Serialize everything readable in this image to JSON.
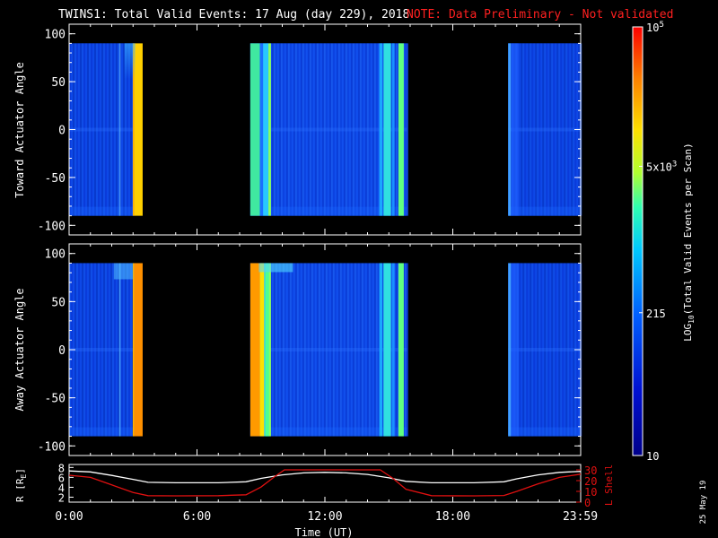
{
  "header": {
    "title": "TWINS1: Total Valid Events: 17 Aug (day 229), 2018",
    "note": "NOTE: Data Preliminary - Not validated",
    "date_stamp": "25 May 19"
  },
  "colors": {
    "background": "#000000",
    "note": "#ff2020",
    "axes": "#ffffff",
    "r_line": "#ffffff",
    "l_shell_line": "#e01010"
  },
  "chart_data": [
    {
      "type": "heatmap",
      "panel": "top",
      "ylabel": "Toward Actuator Angle",
      "ylim": [
        -110,
        110
      ],
      "yticks": [
        100,
        50,
        0,
        -50,
        -100
      ],
      "data_y_range": [
        -90,
        90
      ],
      "xlim_hours": [
        0,
        24
      ],
      "data_blocks_hours": [
        {
          "start": 0.0,
          "end": 3.05,
          "level": "low"
        },
        {
          "start": 3.05,
          "end": 3.45,
          "level": "high"
        },
        {
          "start": 8.5,
          "end": 15.85,
          "level": "low-mid"
        },
        {
          "start": 20.6,
          "end": 24.0,
          "level": "low"
        }
      ]
    },
    {
      "type": "heatmap",
      "panel": "middle",
      "ylabel": "Away Actuator Angle",
      "ylim": [
        -110,
        110
      ],
      "yticks": [
        100,
        50,
        0,
        -50,
        -100
      ],
      "data_y_range": [
        -90,
        90
      ],
      "xlim_hours": [
        0,
        24
      ],
      "data_blocks_hours": [
        {
          "start": 0.0,
          "end": 3.05,
          "level": "low"
        },
        {
          "start": 3.05,
          "end": 3.45,
          "level": "very-high"
        },
        {
          "start": 8.5,
          "end": 15.85,
          "level": "low-mid"
        },
        {
          "start": 20.6,
          "end": 24.0,
          "level": "low"
        }
      ]
    },
    {
      "type": "line",
      "panel": "bottom",
      "ylabel_left": "R [R",
      "ylabel_left_sub": "E",
      "ylabel_left_close": "]",
      "ylabel_right": "L Shell",
      "yticks_left": [
        2,
        4,
        6,
        8
      ],
      "yticks_right": [
        0,
        10,
        20,
        30
      ],
      "ylim_left": [
        2,
        8
      ],
      "ylim_right": [
        0,
        30
      ],
      "xlabel": "Time (UT)",
      "xtick_labels": [
        "0:00",
        "6:00",
        "12:00",
        "18:00",
        "23:59"
      ],
      "xtick_hours": [
        0,
        6,
        12,
        18,
        23.98
      ],
      "series": [
        {
          "axis": "left",
          "x": [
            0,
            1,
            2,
            3,
            3.7,
            5,
            7,
            8.3,
            9,
            10,
            11,
            12,
            13,
            14,
            15,
            15.8,
            17,
            19,
            20.4,
            21,
            22,
            23,
            24
          ],
          "values": [
            7.3,
            7.1,
            6.4,
            5.6,
            5.0,
            4.9,
            4.9,
            5.1,
            5.8,
            6.5,
            6.9,
            7.0,
            6.9,
            6.6,
            5.9,
            5.2,
            4.9,
            4.9,
            5.1,
            5.7,
            6.5,
            7.0,
            7.2
          ]
        },
        {
          "axis": "right",
          "x": [
            0,
            1,
            2,
            3,
            3.7,
            5,
            7,
            8.3,
            9,
            9.6,
            10.1,
            14.6,
            15.2,
            15.8,
            17,
            19,
            20.4,
            21,
            22,
            23,
            24
          ],
          "values": [
            25,
            23,
            16,
            9,
            6,
            5.8,
            6,
            6.8,
            14,
            23,
            30,
            30,
            22,
            12,
            6,
            5.8,
            6.2,
            10,
            17,
            23,
            26
          ]
        }
      ]
    },
    {
      "type": "colorbar",
      "label": "LOG",
      "label_sub": "10",
      "label_rest": "(Total Valid Events per Scan)",
      "tick_labels": [
        {
          "base": "10",
          "sup": "5",
          "value": 100000
        },
        {
          "base": "5x10",
          "sup": "3",
          "value": 5000
        },
        {
          "base": "215",
          "sup": "",
          "value": 215
        },
        {
          "base": "10",
          "sup": "",
          "value": 10
        }
      ],
      "scale": "log",
      "range": [
        10,
        100000
      ]
    }
  ]
}
